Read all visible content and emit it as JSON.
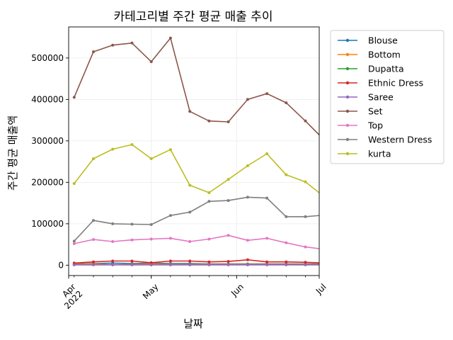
{
  "chart_data": {
    "type": "line",
    "title": "카테고리별 주간 평균 매출 추이",
    "xlabel": "날짜",
    "ylabel": "주간 평균 매출액",
    "x": [
      "2022-04-03",
      "2022-04-10",
      "2022-04-17",
      "2022-04-24",
      "2022-05-01",
      "2022-05-08",
      "2022-05-15",
      "2022-05-22",
      "2022-05-29",
      "2022-06-05",
      "2022-06-12",
      "2022-06-19",
      "2022-06-26",
      "2022-07-03"
    ],
    "xlim": [
      "2022-04-01",
      "2022-07-01"
    ],
    "x_ticks": [
      {
        "date": "2022-04-01",
        "label": "Apr",
        "sub": "2022",
        "major": true
      },
      {
        "date": "2022-05-01",
        "label": "May",
        "sub": "",
        "major": true
      },
      {
        "date": "2022-06-01",
        "label": "Jun",
        "sub": "",
        "major": true
      },
      {
        "date": "2022-07-01",
        "label": "Jul",
        "sub": "",
        "major": true
      }
    ],
    "ylim": [
      -25000,
      575000
    ],
    "y_ticks": [
      0,
      100000,
      200000,
      300000,
      400000,
      500000
    ],
    "y_tick_labels": [
      "0",
      "100000",
      "200000",
      "300000",
      "400000",
      "500000"
    ],
    "grid": true,
    "legend_position": "outside right",
    "series": [
      {
        "name": "Blouse",
        "color": "#1f77b4",
        "values": [
          3000,
          4000,
          5000,
          4000,
          5000,
          4000,
          4000,
          3000,
          3000,
          3000,
          3000,
          3000,
          3000,
          3000
        ]
      },
      {
        "name": "Bottom",
        "color": "#ff7f0e",
        "values": [
          2000,
          3000,
          1000,
          2000,
          3000,
          2000,
          2000,
          2000,
          2000,
          2000,
          2000,
          2000,
          2000,
          2000
        ]
      },
      {
        "name": "Dupatta",
        "color": "#2ca02c",
        "values": [
          1000,
          1000,
          1000,
          1000,
          1000,
          1000,
          1000,
          1000,
          1000,
          1000,
          1000,
          1000,
          1000,
          1000
        ]
      },
      {
        "name": "Ethnic Dress",
        "color": "#d62728",
        "values": [
          5000,
          8000,
          10000,
          10000,
          6000,
          10000,
          10000,
          8000,
          9000,
          13000,
          8000,
          8000,
          7000,
          5000
        ]
      },
      {
        "name": "Saree",
        "color": "#9467bd",
        "values": [
          1000,
          1000,
          1000,
          1000,
          1000,
          1000,
          1000,
          1000,
          1000,
          1000,
          1000,
          1000,
          1000,
          1000
        ]
      },
      {
        "name": "Set",
        "color": "#8c564b",
        "values": [
          405000,
          515000,
          531000,
          536000,
          491000,
          548000,
          371000,
          348000,
          346000,
          400000,
          414000,
          392000,
          348000,
          301000
        ]
      },
      {
        "name": "Top",
        "color": "#e377c2",
        "values": [
          52000,
          62000,
          57000,
          61000,
          63000,
          65000,
          57000,
          63000,
          72000,
          60000,
          65000,
          54000,
          44000,
          38000
        ]
      },
      {
        "name": "Western Dress",
        "color": "#7f7f7f",
        "values": [
          58000,
          108000,
          100000,
          99000,
          98000,
          120000,
          128000,
          154000,
          156000,
          164000,
          162000,
          117000,
          117000,
          121000
        ]
      },
      {
        "name": "kurta",
        "color": "#bcbd22",
        "values": [
          197000,
          257000,
          280000,
          291000,
          257000,
          279000,
          193000,
          175000,
          207000,
          240000,
          269000,
          218000,
          201000,
          164000
        ]
      }
    ]
  }
}
